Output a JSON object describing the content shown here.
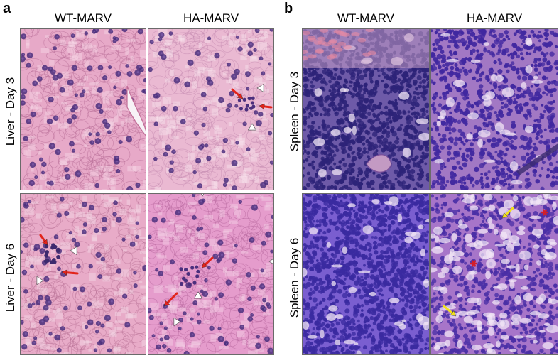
{
  "panel_a": {
    "letter": "a",
    "columns": [
      "WT-MARV",
      "HA-MARV"
    ],
    "rows": [
      "Liver - Day 3",
      "Liver - Day 6"
    ]
  },
  "panel_b": {
    "letter": "b",
    "columns": [
      "WT-MARV",
      "HA-MARV"
    ],
    "rows": [
      "Spleen - Day 3",
      "Spleen - Day 6"
    ]
  },
  "colors": {
    "liver_bg": "#e7a9c8",
    "liver_nucleus": "#4b2f7d",
    "spleen_bg": "#8a6fc4",
    "spleen_nucleus": "#3b2a8c",
    "arrow_red": "#e2231a",
    "arrow_yellow": "#f2e11a",
    "arrowhead_white": "#ffffff",
    "asterisk_red": "#d21e2a"
  }
}
